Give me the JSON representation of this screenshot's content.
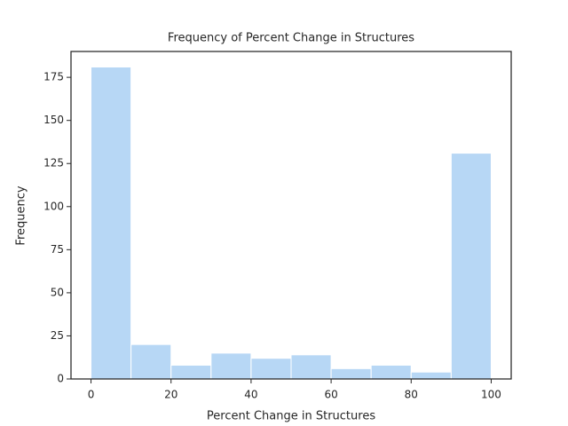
{
  "chart_data": {
    "type": "histogram",
    "title": "Frequency of Percent Change in Structures",
    "x_label": "Percent Change in Structures",
    "y_label": "Frequency",
    "bins": [
      0,
      10,
      20,
      30,
      40,
      50,
      60,
      70,
      80,
      90,
      100
    ],
    "values": [
      181,
      20,
      8,
      15,
      12,
      14,
      6,
      8,
      4,
      131
    ],
    "color": "#b7d7f5",
    "xlim": [
      -5,
      105
    ],
    "xticks": [
      0,
      20,
      40,
      60,
      80,
      100
    ],
    "ylim": [
      0,
      190
    ],
    "yticks": [
      0,
      25,
      50,
      75,
      100,
      125,
      150,
      175
    ],
    "grid": false
  }
}
